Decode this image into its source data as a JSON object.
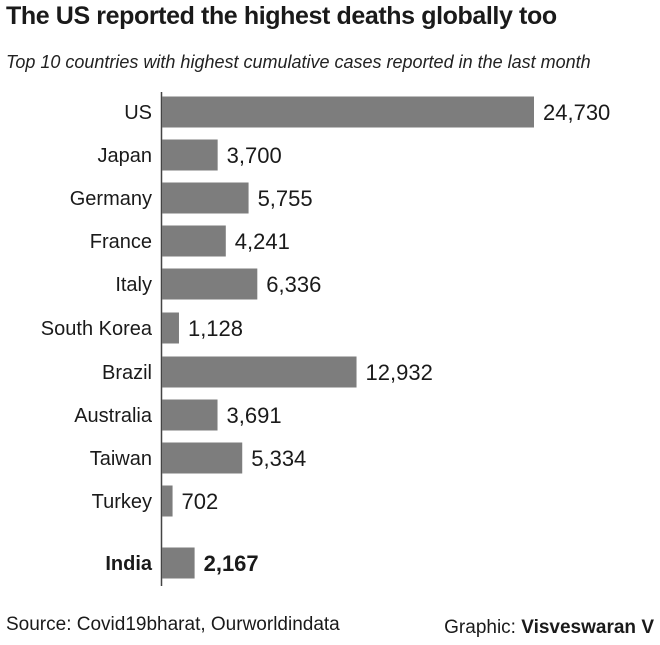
{
  "title": "The US reported the highest deaths globally too",
  "subtitle": "Top 10 countries with highest cumulative cases reported in the last month",
  "footer": {
    "source": "Source: Covid19bharat, Ourworldindata",
    "credit_label": "Graphic:",
    "credit_name": "Visveswaran V"
  },
  "colors": {
    "bar": "#7d7d7d",
    "text": "#1a1a1a",
    "background": "#ffffff"
  },
  "chart_data": {
    "type": "bar",
    "orientation": "horizontal",
    "categories": [
      "US",
      "Japan",
      "Germany",
      "France",
      "Italy",
      "South Korea",
      "Brazil",
      "Australia",
      "Taiwan",
      "Turkey",
      "India"
    ],
    "values": [
      24730,
      3700,
      5755,
      4241,
      6336,
      1128,
      12932,
      3691,
      5334,
      702,
      2167
    ],
    "value_labels": [
      "24,730",
      "3,700",
      "5,755",
      "4,241",
      "6,336",
      "1,128",
      "12,932",
      "3,691",
      "5,334",
      "702",
      "2,167"
    ],
    "highlighted": [
      "India"
    ],
    "title": "The US reported the highest deaths globally too",
    "subtitle": "Top 10 countries with highest cumulative cases reported in the last month",
    "xlabel": "",
    "ylabel": "",
    "grid": false,
    "legend": "none"
  }
}
